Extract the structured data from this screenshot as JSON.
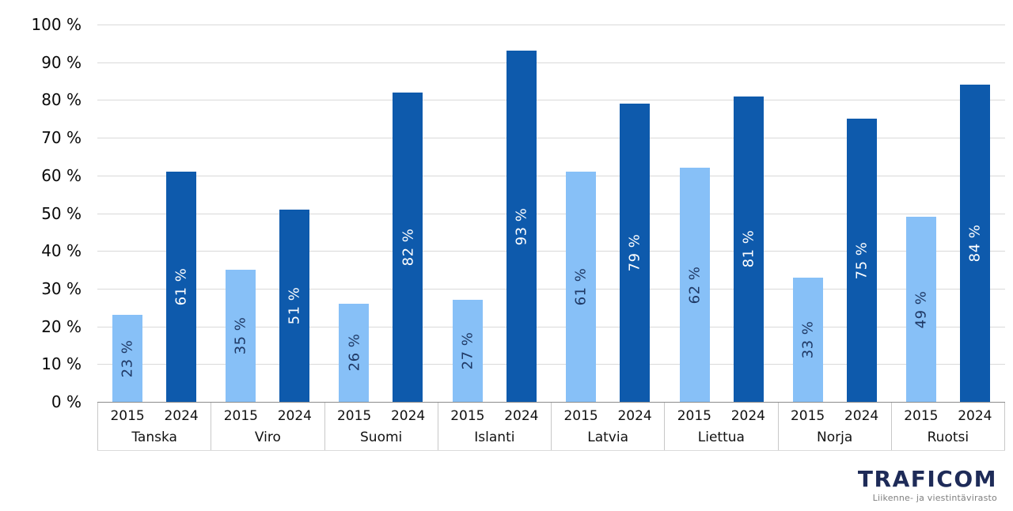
{
  "chart_data": {
    "type": "bar",
    "categories": [
      "Tanska",
      "Viro",
      "Suomi",
      "Islanti",
      "Latvia",
      "Liettua",
      "Norja",
      "Ruotsi"
    ],
    "series": [
      {
        "name": "2015",
        "color": "#87C0F7",
        "label_color": "#1F3864",
        "values": [
          23,
          35,
          26,
          27,
          61,
          62,
          33,
          49
        ]
      },
      {
        "name": "2024",
        "color": "#0E5AAC",
        "label_color": "#FFFFFF",
        "values": [
          61,
          51,
          82,
          93,
          79,
          81,
          75,
          84
        ]
      }
    ],
    "value_suffix": " %",
    "bar_label_rotation": -90,
    "ylim": [
      0,
      100
    ],
    "y_tick_step": 10,
    "y_ticks": [
      "0 %",
      "10 %",
      "20 %",
      "30 %",
      "40 %",
      "50 %",
      "60 %",
      "70 %",
      "80 %",
      "90 %",
      "100 %"
    ],
    "grid": true,
    "gridline_color": "#D9D9D9",
    "legend_position": "none",
    "title": "",
    "xlabel": "",
    "ylabel": ""
  },
  "logo": {
    "wordmark": "TRAFICOM",
    "tagline": "Liikenne- ja viestintävirasto",
    "wordmark_color": "#1E2B58",
    "tagline_color": "#7F7F7F"
  }
}
